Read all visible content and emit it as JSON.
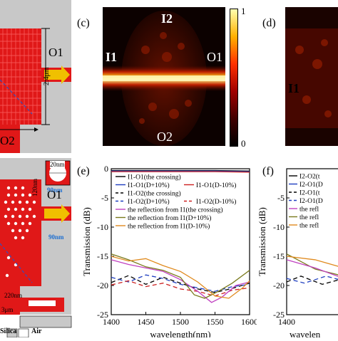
{
  "panels": {
    "top_left": {
      "port_o1": "O1",
      "port_o2": "O2",
      "dimension": "2.4μm"
    },
    "panel_c": {
      "label": "(c)",
      "port_i2": "I2",
      "port_i1": "I1",
      "port_o1": "O1",
      "port_o2": "O2",
      "colorbar_max": "1",
      "colorbar_min": "0"
    },
    "panel_d": {
      "label": "(d)",
      "port_i1": "I1"
    },
    "bottom_left": {
      "dim_120nm": "120nm",
      "dim_20nm": "20nm",
      "dim_90nm_a": "90nm",
      "dim_90nm_b": "90nm",
      "port_o1": "O1",
      "dim_220nm": "220nm",
      "dim_3um": "3μm",
      "legend_silica": "Silica",
      "legend_air": "Air"
    },
    "panel_e": {
      "label": "(e)"
    },
    "panel_f": {
      "label": "(f)",
      "legend_partial": [
        "I2-O2(t",
        "I2-O1(D",
        "I2-O1(t",
        "I2-O1(D",
        "the refl",
        "the refl",
        "the refl"
      ],
      "ytick_partial": [
        "-5",
        "-10",
        "-15",
        "-20",
        "-25"
      ]
    }
  },
  "chart_data": {
    "type": "line",
    "title": "",
    "xlabel": "wavelength(nm)",
    "ylabel": "Transmission (dB)",
    "xlim": [
      1400,
      1600
    ],
    "ylim": [
      -25,
      0
    ],
    "xticks": [
      1400,
      1450,
      1500,
      1550,
      1600
    ],
    "yticks": [
      0,
      -5,
      -10,
      -15,
      -20,
      -25
    ],
    "series": [
      {
        "name": "I1-O1(the crossing)",
        "color": "#000000",
        "dash": "solid",
        "x": [
          1400,
          1450,
          1500,
          1550,
          1600
        ],
        "y": [
          -0.3,
          -0.3,
          -0.3,
          -0.3,
          -0.4
        ]
      },
      {
        "name": "I1-O1(D+10%)",
        "color": "#1f3fc0",
        "dash": "solid",
        "x": [
          1400,
          1450,
          1500,
          1550,
          1600
        ],
        "y": [
          -0.4,
          -0.4,
          -0.4,
          -0.4,
          -0.5
        ]
      },
      {
        "name": "I1-O1(D-10%)",
        "color": "#cc2020",
        "dash": "solid",
        "x": [
          1400,
          1450,
          1500,
          1550,
          1600
        ],
        "y": [
          -0.5,
          -0.5,
          -0.5,
          -0.5,
          -0.6
        ]
      },
      {
        "name": "I1-O2(the crossing)",
        "color": "#000000",
        "dash": "dashed",
        "x": [
          1400,
          1425,
          1450,
          1475,
          1500,
          1525,
          1550,
          1575,
          1600
        ],
        "y": [
          -19.5,
          -18.3,
          -19.8,
          -18.6,
          -19.6,
          -20.6,
          -21.2,
          -20.5,
          -19.6
        ]
      },
      {
        "name": "I1-O2(D+10%)",
        "color": "#1f3fc0",
        "dash": "dashed",
        "x": [
          1400,
          1425,
          1450,
          1475,
          1500,
          1525,
          1550,
          1575,
          1600
        ],
        "y": [
          -18.6,
          -19.4,
          -18.2,
          -18.8,
          -19.8,
          -20.4,
          -21.0,
          -20.2,
          -19.8
        ]
      },
      {
        "name": "I1-O2(D-10%)",
        "color": "#cc2020",
        "dash": "dashed",
        "x": [
          1400,
          1425,
          1450,
          1475,
          1500,
          1525,
          1550,
          1575,
          1600
        ],
        "y": [
          -19.9,
          -19.2,
          -20.2,
          -19.6,
          -20.6,
          -21.0,
          -21.8,
          -20.8,
          -20.4
        ]
      },
      {
        "name": "the reflection from I1(the crossing)",
        "color": "#c040c0",
        "dash": "solid",
        "x": [
          1400,
          1425,
          1450,
          1475,
          1500,
          1525,
          1545,
          1560,
          1580,
          1600
        ],
        "y": [
          -15.6,
          -16.4,
          -17.0,
          -17.6,
          -19.0,
          -21.0,
          -22.9,
          -22.0,
          -20.0,
          -19.4
        ]
      },
      {
        "name": "the reflection from I1(D+10%)",
        "color": "#7a7a1c",
        "dash": "solid",
        "x": [
          1400,
          1425,
          1450,
          1475,
          1500,
          1520,
          1535,
          1555,
          1575,
          1600
        ],
        "y": [
          -14.6,
          -15.6,
          -16.8,
          -17.4,
          -18.6,
          -21.6,
          -22.2,
          -21.0,
          -19.6,
          -17.4
        ]
      },
      {
        "name": "the reflection from I1(D-10%)",
        "color": "#e08a1e",
        "dash": "solid",
        "x": [
          1400,
          1425,
          1450,
          1475,
          1500,
          1525,
          1550,
          1570,
          1590,
          1600
        ],
        "y": [
          -15.0,
          -15.8,
          -15.4,
          -16.6,
          -17.6,
          -19.4,
          -21.8,
          -22.2,
          -20.4,
          -19.2
        ]
      }
    ]
  }
}
